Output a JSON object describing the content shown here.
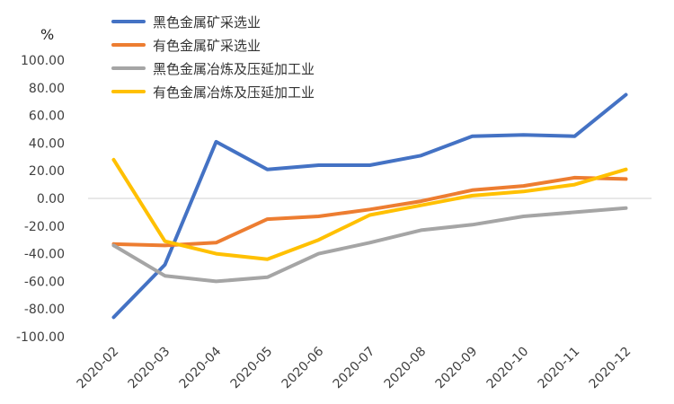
{
  "chart_data": {
    "type": "line",
    "ylabel": "%",
    "ylim": [
      -100,
      100
    ],
    "y_tick_step": 20,
    "y_tick_labels": [
      "100.00",
      "80.00",
      "60.00",
      "40.00",
      "20.00",
      "0.00",
      "-20.00",
      "-40.00",
      "-60.00",
      "-80.00",
      "-100.00"
    ],
    "categories": [
      "2020-02",
      "2020-03",
      "2020-04",
      "2020-05",
      "2020-06",
      "2020-07",
      "2020-08",
      "2020-09",
      "2020-10",
      "2020-11",
      "2020-12"
    ],
    "grid": false,
    "legend_position": "top-center",
    "series": [
      {
        "name": "黑色金属矿采选业",
        "color": "#4472C4",
        "values": [
          -86,
          -48,
          41,
          21,
          24,
          24,
          31,
          45,
          46,
          45,
          75
        ]
      },
      {
        "name": "有色金属矿采选业",
        "color": "#ED7D31",
        "values": [
          -33,
          -34,
          -32,
          -15,
          -13,
          -8,
          -2,
          6,
          9,
          15,
          14
        ]
      },
      {
        "name": "黑色金属冶炼及压延加工业",
        "color": "#A5A5A5",
        "values": [
          -34,
          -56,
          -60,
          -57,
          -40,
          -32,
          -23,
          -19,
          -13,
          -10,
          -7
        ]
      },
      {
        "name": "有色金属冶炼及压延加工业",
        "color": "#FFC000",
        "values": [
          28,
          -31,
          -40,
          -44,
          -30,
          -12,
          -5,
          2,
          5,
          10,
          21
        ]
      }
    ]
  }
}
